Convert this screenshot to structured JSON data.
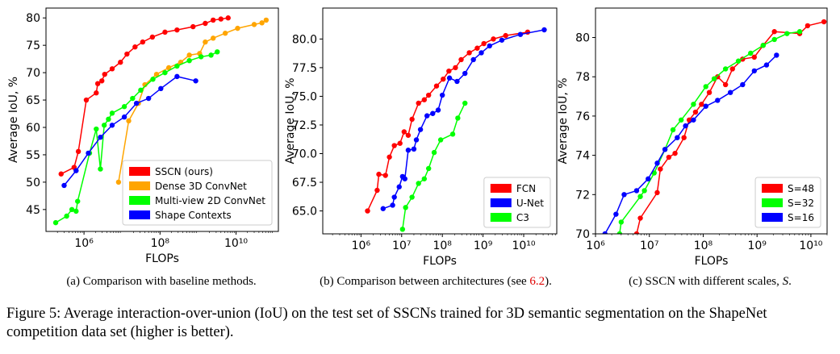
{
  "chart_data": [
    {
      "type": "line",
      "xlabel": "FLOPs",
      "ylabel": "Average IoU, %",
      "xscale": "log",
      "legend": "lower right",
      "grid": false,
      "xlim": [
        100000,
        130000000000
      ],
      "ylim": [
        41,
        81.8
      ],
      "xticks": [
        {
          "value": 1000000,
          "label": "10⁶"
        },
        {
          "value": 100000000,
          "label": "10⁸"
        },
        {
          "value": 10000000000,
          "label": "10¹⁰"
        }
      ],
      "yticks": [
        45,
        50,
        55,
        60,
        65,
        70,
        75,
        80
      ],
      "caption": [
        "(a) Comparison with baseline methods."
      ],
      "series": [
        {
          "name": "SSCN (ours)",
          "color": "#ff0000",
          "x": [
            250000.0,
            550000.0,
            710000.0,
            1150000.0,
            2100000.0,
            2300000.0,
            2950000.0,
            3500000.0,
            5500000.0,
            9100000.0,
            13500000.0,
            22000000.0,
            35000000.0,
            63000000.0,
            135000000.0,
            280000000.0,
            740000000.0,
            1550000000.0,
            2500000000.0,
            4000000000.0,
            6200000000.0
          ],
          "values": [
            51.5,
            52.7,
            55.6,
            65,
            66.3,
            68,
            68.5,
            69.7,
            70.7,
            71.9,
            73.4,
            74.7,
            75.6,
            76.5,
            77.4,
            77.8,
            78.4,
            79,
            79.6,
            79.8,
            80
          ]
        },
        {
          "name": "Dense 3D ConvNet",
          "color": "#ffa500",
          "x": [
            8100000.0,
            15000000.0,
            27000000.0,
            40000000.0,
            81000000.0,
            170000000.0,
            350000000.0,
            590000000.0,
            1100000000.0,
            1550000000.0,
            2500000000.0,
            5200000000.0,
            11000000000.0,
            30000000000.0,
            48000000000.0,
            62000000000.0
          ],
          "values": [
            50,
            61.2,
            64.4,
            67.8,
            69.7,
            70.9,
            71.9,
            73.2,
            73.5,
            75.6,
            76.3,
            77.2,
            78.1,
            78.8,
            79.1,
            79.6
          ]
        },
        {
          "name": "Multi-view 2D ConvNet",
          "color": "#00ff00",
          "x": [
            180000.0,
            350000.0,
            480000.0,
            620000.0,
            680000.0,
            1400000.0,
            2100000.0,
            2700000.0,
            3400000.0,
            4400000.0,
            5500000.0,
            11500000.0,
            19000000.0,
            31000000.0,
            65000000.0,
            135000000.0,
            280000000.0,
            590000000.0,
            1200000000.0,
            2200000000.0,
            3200000000.0
          ],
          "values": [
            42.6,
            43.8,
            45,
            44.7,
            46.5,
            55.3,
            59.7,
            52.4,
            60.4,
            61.5,
            62.6,
            63.8,
            65.3,
            66.8,
            68.8,
            70,
            71.2,
            72.2,
            72.9,
            73.2,
            73.8
          ]
        },
        {
          "name": "Shape Contexts",
          "color": "#0000ff",
          "x": [
            300000.0,
            620000.0,
            1300000.0,
            2700000.0,
            5500000.0,
            11500000.0,
            24000000.0,
            50000000.0,
            105000000.0,
            280000000.0,
            870000000.0
          ],
          "values": [
            49.4,
            52.1,
            55.3,
            58.2,
            60.4,
            61.9,
            64.4,
            65.3,
            67.1,
            69.3,
            68.5
          ]
        }
      ]
    },
    {
      "type": "line",
      "xlabel": "FLOPs",
      "ylabel": "Average IoU, %",
      "xscale": "log",
      "legend": "lower right",
      "grid": false,
      "xlim": [
        115000,
        65000000000
      ],
      "ylim": [
        63,
        82.7
      ],
      "xticks": [
        {
          "value": 1000000,
          "label": "10⁶"
        },
        {
          "value": 10000000,
          "label": "10⁷"
        },
        {
          "value": 100000000,
          "label": "10⁸"
        },
        {
          "value": 1000000000,
          "label": "10⁹"
        },
        {
          "value": 10000000000,
          "label": "10¹⁰"
        }
      ],
      "yticks": [
        {
          "value": 65,
          "label": "65.0"
        },
        {
          "value": 67.5,
          "label": "67.5"
        },
        {
          "value": 70,
          "label": "70.0"
        },
        {
          "value": 72.5,
          "label": "72.5"
        },
        {
          "value": 75,
          "label": "75.0"
        },
        {
          "value": 77.5,
          "label": "77.5"
        },
        {
          "value": 80,
          "label": "80.0"
        }
      ],
      "caption": [
        "(b) Comparison between architectures (see",
        "6.2",
        ")."
      ],
      "series": [
        {
          "name": "FCN",
          "color": "#ff0000",
          "x": [
            1450000.0,
            2500000.0,
            2750000.0,
            4000000.0,
            5000000.0,
            6600000.0,
            9100000.0,
            11500000.0,
            14500000.0,
            18000000.0,
            26000000.0,
            36000000.0,
            46000000.0,
            72000000.0,
            105000000.0,
            145000000.0,
            210000000.0,
            290000000.0,
            460000000.0,
            720000000.0,
            1050000000.0,
            1800000000.0,
            3600000000.0,
            12500000000.0
          ],
          "values": [
            65,
            66.8,
            68.2,
            68.1,
            69.7,
            70.7,
            70.9,
            71.9,
            71.6,
            73,
            74.4,
            74.7,
            75.1,
            75.9,
            76.5,
            77.2,
            77.5,
            78.2,
            78.8,
            79.2,
            79.6,
            80,
            80.3,
            80.6
          ]
        },
        {
          "name": "U-Net",
          "color": "#0000ff",
          "x": [
            3500000.0,
            6000000.0,
            6600000.0,
            8700000.0,
            10500000.0,
            12000000.0,
            14500000.0,
            20000000.0,
            23000000.0,
            29000000.0,
            42000000.0,
            58000000.0,
            79000000.0,
            100000000.0,
            150000000.0,
            230000000.0,
            360000000.0,
            580000000.0,
            910000000.0,
            1450000000.0,
            2900000000.0,
            8300000000.0,
            32000000000.0
          ],
          "values": [
            65.2,
            65.5,
            66.2,
            67.1,
            68,
            67.8,
            70.3,
            70.4,
            71.2,
            72.1,
            73.3,
            73.5,
            73.8,
            75.1,
            76.6,
            76.3,
            77,
            78.2,
            78.8,
            79.4,
            79.9,
            80.4,
            80.8
          ]
        },
        {
          "name": "C3",
          "color": "#00ff00",
          "x": [
            10500000.0,
            12500000.0,
            18000000.0,
            26000000.0,
            36000000.0,
            46000000.0,
            63000000.0,
            91000000.0,
            180000000.0,
            240000000.0,
            360000000.0
          ],
          "values": [
            63.4,
            65.3,
            66.2,
            67.4,
            67.8,
            68.7,
            70.1,
            71.2,
            71.7,
            73.1,
            74.4
          ]
        }
      ]
    },
    {
      "type": "line",
      "xlabel": "FLOPs",
      "ylabel": "Average IoU, %",
      "xscale": "log",
      "legend": "lower right",
      "grid": false,
      "xlim": [
        1000000,
        20000000000
      ],
      "ylim": [
        70,
        81.5
      ],
      "xticks": [
        {
          "value": 1000000,
          "label": "10⁶"
        },
        {
          "value": 10000000,
          "label": "10⁷"
        },
        {
          "value": 100000000,
          "label": "10⁸"
        },
        {
          "value": 1000000000,
          "label": "10⁹"
        },
        {
          "value": 10000000000,
          "label": "10¹⁰"
        }
      ],
      "yticks": [
        70,
        72,
        74,
        76,
        78,
        80
      ],
      "caption": [
        "(c) SSCN with different scales,",
        "S",
        "."
      ],
      "series": [
        {
          "name": "S=48",
          "color": "#ff0000",
          "x": [
            5800000.0,
            6800000.0,
            14000000.0,
            16000000.0,
            23000000.0,
            30000000.0,
            44000000.0,
            55000000.0,
            72000000.0,
            93000000.0,
            130000000.0,
            185000000.0,
            260000000.0,
            350000000.0,
            540000000.0,
            890000000.0,
            1300000000.0,
            2100000000.0,
            6200000000.0,
            8700000000.0,
            17500000000.0
          ],
          "values": [
            70,
            70.8,
            72.1,
            73.3,
            73.9,
            74.1,
            74.9,
            75.8,
            76.2,
            76.6,
            77.2,
            78,
            77.6,
            78.4,
            78.9,
            79,
            79.6,
            80.3,
            80.2,
            80.6,
            80.8
          ]
        },
        {
          "name": "S=32",
          "color": "#00ff00",
          "x": [
            2800000.0,
            3000000.0,
            6800000.0,
            8100000.0,
            12300000.0,
            19500000.0,
            27500000.0,
            39000000.0,
            66000000.0,
            112000000.0,
            160000000.0,
            260000000.0,
            450000000.0,
            760000000.0,
            1300000000.0,
            2100000000.0,
            3600000000.0,
            6200000000.0
          ],
          "values": [
            70,
            70.6,
            71.9,
            72.2,
            73.1,
            74.3,
            75.3,
            75.8,
            76.6,
            77.5,
            77.9,
            78.4,
            78.8,
            79.2,
            79.6,
            79.9,
            80.2,
            80.3
          ]
        },
        {
          "name": "S=16",
          "color": "#0000ff",
          "x": [
            1500000.0,
            2400000.0,
            3400000.0,
            5800000.0,
            9500000.0,
            14000000.0,
            19500000.0,
            33000000.0,
            47000000.0,
            66000000.0,
            112000000.0,
            185000000.0,
            320000000.0,
            540000000.0,
            890000000.0,
            1500000000.0,
            2300000000.0
          ],
          "values": [
            70,
            71,
            72,
            72.2,
            72.8,
            73.6,
            74.3,
            74.9,
            75.5,
            75.8,
            76.5,
            76.8,
            77.2,
            77.6,
            78.3,
            78.6,
            79.1
          ]
        }
      ]
    }
  ],
  "figure_caption": "Figure 5:  Average interaction-over-union (IoU) on the test set of SSCNs trained for 3D semantic segmentation on the ShapeNet competition data set (higher is better)."
}
